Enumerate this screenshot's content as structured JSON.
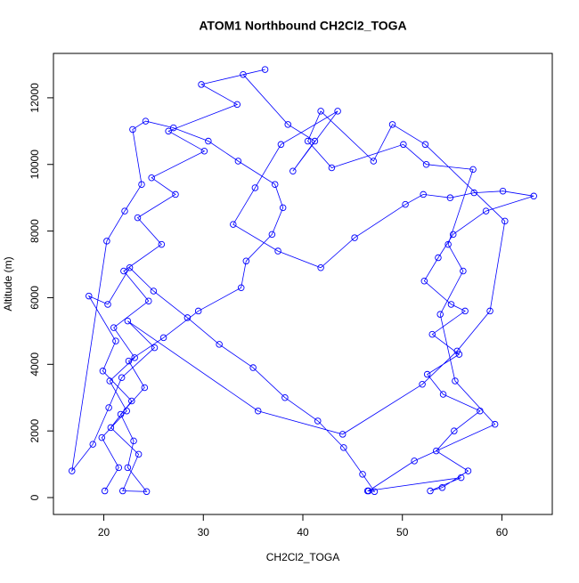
{
  "chart_data": {
    "type": "line",
    "title": "ATOM1 Northbound CH2Cl2_TOGA",
    "x_label": "CH2Cl2_TOGA",
    "y_label": "Altitude (m)",
    "xlim": [
      14.94,
      65.06
    ],
    "ylim": [
      -507,
      13333
    ],
    "xticks": [
      20,
      30,
      40,
      50,
      60
    ],
    "yticks": [
      0,
      2000,
      4000,
      6000,
      8000,
      10000,
      12000
    ],
    "series": [
      {
        "color": "#0000ff",
        "x": [
          20.1,
          21.5,
          19.8,
          22.3,
          20.6,
          23.1,
          21.0,
          24.5,
          22.0,
          25.8,
          23.4,
          27.2,
          24.8,
          30.1,
          26.5,
          33.4,
          29.8,
          36.2,
          34.0,
          38.5,
          41.2,
          39.0,
          43.5,
          37.8,
          35.2,
          33.0,
          37.5,
          41.8,
          45.2,
          50.3,
          52.1,
          54.8,
          57.2,
          60.1,
          63.2,
          58.4,
          55.1,
          53.6,
          52.2,
          54.9,
          56.3,
          53.0,
          55.7,
          52.5,
          54.1,
          57.8,
          55.2,
          53.4,
          56.6,
          54.0,
          52.8,
          55.9,
          46.5,
          47.2,
          46.0,
          44.1,
          41.5,
          38.2,
          35.0,
          31.6,
          28.4,
          25.0,
          22.6,
          20.4,
          18.5,
          21.2,
          19.9,
          22.8,
          20.7,
          23.5,
          21.9,
          24.3,
          22.4,
          23.0,
          21.7,
          24.1,
          22.5,
          26.0,
          29.5,
          33.8,
          34.3,
          36.9,
          38.0,
          37.2,
          33.5,
          30.5,
          27.0,
          24.2,
          22.9,
          23.8,
          22.1,
          20.3,
          16.8,
          18.9,
          20.5,
          21.8,
          25.1,
          22.4,
          35.5,
          44.0,
          52.0,
          55.5,
          58.8,
          60.3,
          52.3,
          49.0,
          47.1,
          41.8,
          40.5,
          42.9,
          50.1,
          52.4,
          57.1,
          54.6,
          56.1,
          53.8,
          55.3,
          59.3,
          51.2,
          46.6
        ],
        "values": [
          200,
          900,
          1800,
          2600,
          3500,
          4200,
          5100,
          5900,
          6800,
          7600,
          8400,
          9100,
          9600,
          10400,
          11000,
          11800,
          12400,
          12850,
          12700,
          11200,
          10700,
          9800,
          11600,
          10600,
          9300,
          8200,
          7400,
          6900,
          7800,
          8800,
          9100,
          9000,
          9150,
          9200,
          9050,
          8600,
          7900,
          7200,
          6500,
          5800,
          5600,
          4900,
          4300,
          3700,
          3100,
          2600,
          2000,
          1400,
          800,
          300,
          200,
          600,
          200,
          180,
          700,
          1500,
          2300,
          3000,
          3900,
          4600,
          5400,
          6200,
          6900,
          5800,
          6050,
          4700,
          3800,
          2900,
          2100,
          1300,
          200,
          180,
          900,
          1700,
          2500,
          3300,
          4100,
          4800,
          5600,
          6300,
          7100,
          7900,
          8700,
          9400,
          10100,
          10700,
          11100,
          11300,
          11050,
          9400,
          8600,
          7700,
          800,
          1600,
          2700,
          3600,
          4500,
          5300,
          2600,
          1900,
          3400,
          4400,
          5600,
          8300,
          10600,
          11200,
          10100,
          11600,
          10700,
          9900,
          10600,
          10000,
          9850,
          7600,
          6800,
          5500,
          3500,
          2200,
          1100,
          200
        ]
      }
    ]
  }
}
